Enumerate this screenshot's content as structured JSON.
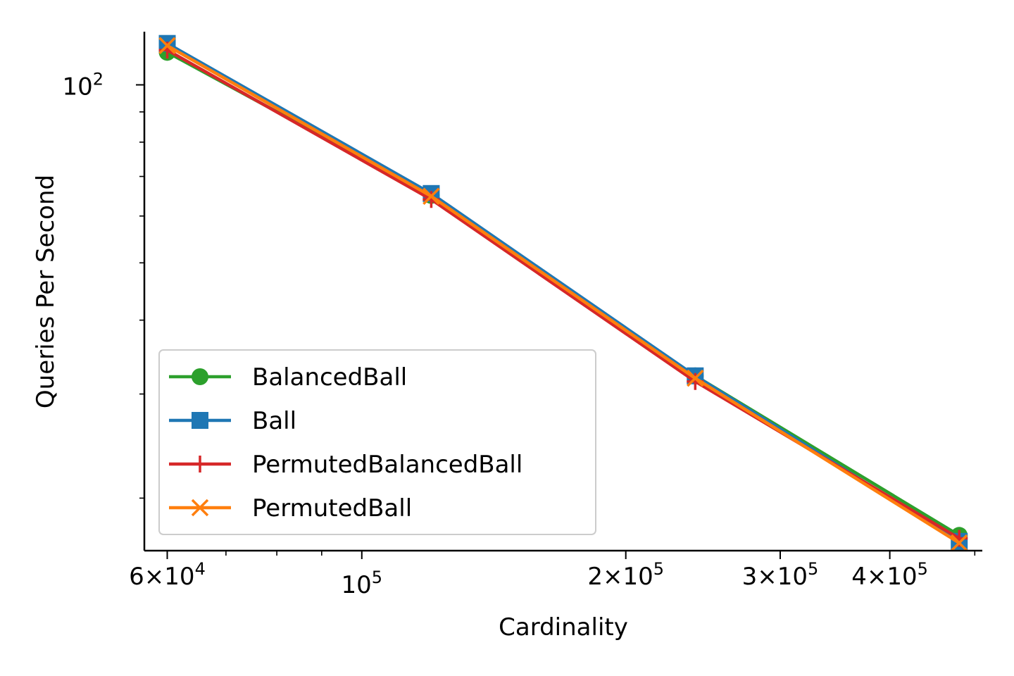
{
  "chart_data": {
    "type": "line",
    "title": "",
    "xlabel": "Cardinality",
    "ylabel": "Queries Per Second",
    "xscale": "log",
    "yscale": "log",
    "xlim": [
      56500,
      510000
    ],
    "ylim": [
      16.3,
      123
    ],
    "x": [
      60000,
      120000,
      240000,
      480000
    ],
    "x_major_ticks": [
      {
        "value": 60000,
        "mantissa": "6",
        "exp": "4",
        "has_mantissa": true
      },
      {
        "value": 100000,
        "mantissa": "",
        "exp": "5",
        "has_mantissa": false
      },
      {
        "value": 200000,
        "mantissa": "2",
        "exp": "5",
        "has_mantissa": true
      },
      {
        "value": 300000,
        "mantissa": "3",
        "exp": "5",
        "has_mantissa": true
      },
      {
        "value": 400000,
        "mantissa": "4",
        "exp": "5",
        "has_mantissa": true
      }
    ],
    "x_minor_ticks": [
      70000,
      80000,
      90000,
      500000
    ],
    "y_major_ticks": [
      {
        "value": 100,
        "base": "10",
        "exp": "2"
      }
    ],
    "y_minor_ticks": [
      20,
      30,
      40,
      50,
      60,
      70,
      80,
      90
    ],
    "grid": false,
    "legend_position": "lower-left",
    "series": [
      {
        "name": "BalancedBall",
        "color": "#2ca02c",
        "marker": "circle",
        "values": [
          113.5,
          65.0,
          32.2,
          17.3
        ]
      },
      {
        "name": "Ball",
        "color": "#1f77b4",
        "marker": "square",
        "values": [
          117.5,
          65.5,
          32.2,
          16.9
        ]
      },
      {
        "name": "PermutedBalancedBall",
        "color": "#d62728",
        "marker": "plus",
        "values": [
          114.5,
          64.0,
          31.5,
          17.1
        ]
      },
      {
        "name": "PermutedBall",
        "color": "#ff7f0e",
        "marker": "x",
        "values": [
          116.5,
          64.8,
          31.9,
          16.8
        ]
      }
    ]
  }
}
